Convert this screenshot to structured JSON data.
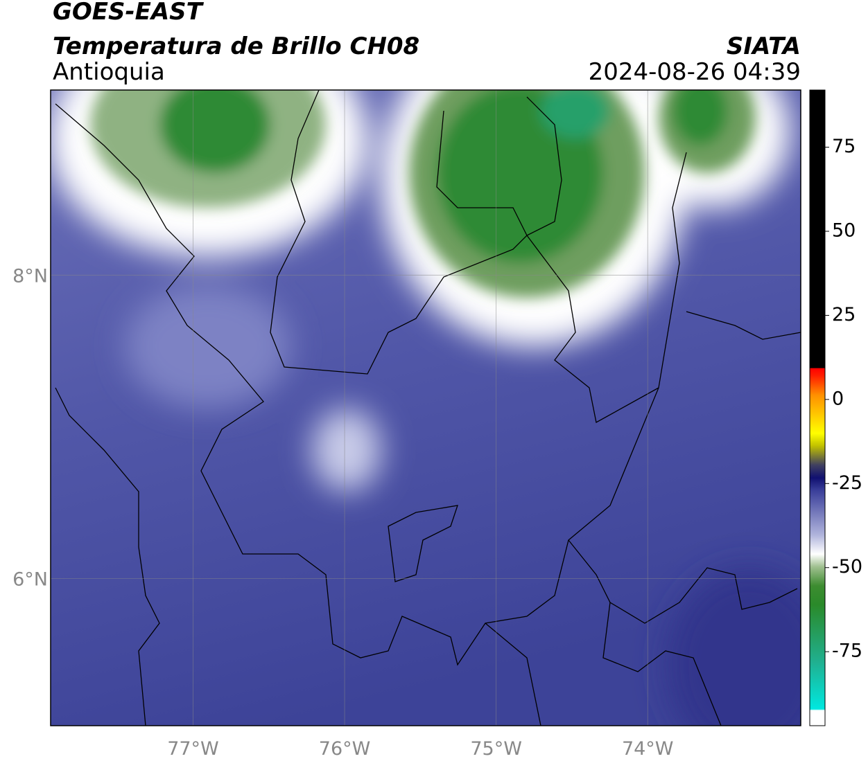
{
  "header": {
    "title": "GOES-EAST",
    "subtitle": "Temperatura de Brillo CH08",
    "region": "Antioquia",
    "source": "SIATA",
    "timestamp": "2024-08-26 04:39"
  },
  "map": {
    "xlim": [
      -77.94,
      -72.99
    ],
    "ylim": [
      5.03,
      9.22
    ],
    "lon_ticks": [
      {
        "value": -77,
        "label": "77°W"
      },
      {
        "value": -76,
        "label": "76°W"
      },
      {
        "value": -75,
        "label": "75°W"
      },
      {
        "value": -74,
        "label": "74°W"
      }
    ],
    "lat_ticks": [
      {
        "value": 8,
        "label": "8°N"
      },
      {
        "value": 6,
        "label": "6°N"
      }
    ]
  },
  "colorbar": {
    "lim": [
      -97,
      92
    ],
    "ticks": [
      75,
      50,
      25,
      0,
      -25,
      -50,
      -75
    ]
  }
}
